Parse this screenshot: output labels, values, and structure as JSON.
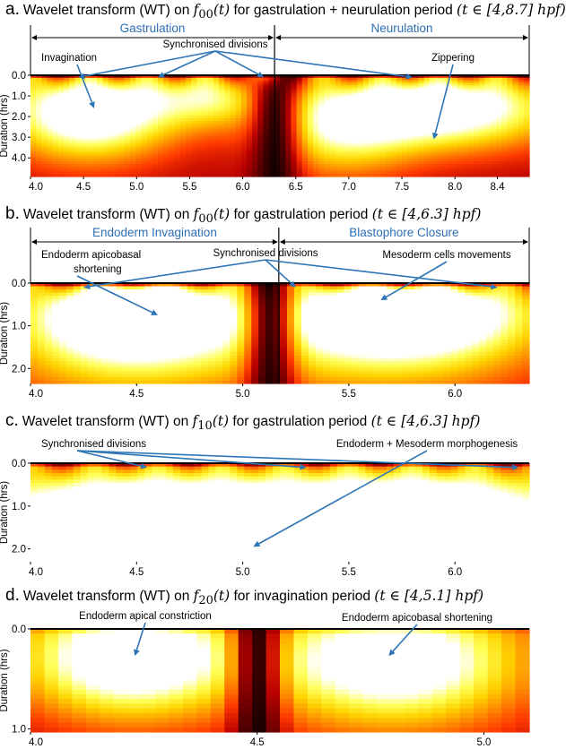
{
  "colors": {
    "arrow": "#2e75b6",
    "phase_label": "#2d6fb6",
    "colormap": [
      "#000000",
      "#5a0000",
      "#b80000",
      "#ff3a00",
      "#ff8c00",
      "#ffd400",
      "#ffff55",
      "#ffffff"
    ]
  },
  "chart_data": [
    {
      "type": "heatmap",
      "panel_label": "a.",
      "title_pre": "Wavelet transform (WT) on ",
      "title_func": "f",
      "title_sub": "00",
      "title_arg": "(t)",
      "title_mid": " for gastrulation + neurulation period ",
      "title_range": "(t ∈ [4,8.7] hpf)",
      "ylabel": "Duration (hrs)",
      "x_range": [
        4.0,
        8.7
      ],
      "y_range": [
        0,
        4.9
      ],
      "xticks": [
        4.0,
        4.5,
        5.0,
        5.5,
        6.0,
        6.5,
        7.0,
        7.5,
        8.0,
        8.4
      ],
      "xtick_labels": [
        "4.0",
        "4.5",
        "5.0",
        "5.5",
        "6.0",
        "6.5",
        "7.0",
        "7.5",
        "8.0",
        "8.4"
      ],
      "yticks": [
        0.0,
        1.0,
        2.0,
        3.0,
        4.0
      ],
      "ytick_labels": [
        "0.0",
        "1.0",
        "2.0",
        "3.0",
        "4.0"
      ],
      "phases": [
        {
          "label": "Gastrulation",
          "start": 4.0,
          "end": 6.3
        },
        {
          "label": "Neurulation",
          "start": 6.3,
          "end": 8.7
        }
      ],
      "divider_x": 6.3,
      "annotations": [
        {
          "text": "Invagination",
          "targets": [
            {
              "x": 4.6,
              "y": 1.6
            }
          ]
        },
        {
          "text": "Synchronised divisions",
          "targets": [
            {
              "x": 4.45,
              "y": 0.1
            },
            {
              "x": 5.2,
              "y": 0.1
            },
            {
              "x": 6.2,
              "y": 0.1
            },
            {
              "x": 7.6,
              "y": 0.1
            }
          ]
        },
        {
          "text": "Zippering",
          "targets": [
            {
              "x": 7.8,
              "y": 3.1
            }
          ]
        }
      ],
      "features": [
        {
          "x": 4.55,
          "y": 1.7,
          "amp": 1.0,
          "sx": 0.55,
          "sy": 1.6
        },
        {
          "x": 5.7,
          "y": 0.9,
          "amp": 0.55,
          "sx": 0.45,
          "sy": 1.1
        },
        {
          "x": 7.9,
          "y": 1.5,
          "amp": 0.95,
          "sx": 0.75,
          "sy": 1.4
        },
        {
          "x": 6.9,
          "y": 2.6,
          "amp": 0.55,
          "sx": 0.5,
          "sy": 1.6
        }
      ],
      "trough_x": 6.3,
      "ridge_period": 0.55
    },
    {
      "type": "heatmap",
      "panel_label": "b.",
      "title_pre": "Wavelet transform (WT) on ",
      "title_func": "f",
      "title_sub": "00",
      "title_arg": "(t)",
      "title_mid": " for gastrulation period ",
      "title_range": "(t ∈ [4,6.3] hpf)",
      "ylabel": "Duration (hrs)",
      "x_range": [
        4.0,
        6.35
      ],
      "y_range": [
        0,
        2.35
      ],
      "xticks": [
        4.0,
        4.5,
        5.0,
        5.5,
        6.0
      ],
      "xtick_labels": [
        "4.0",
        "4.5",
        "5.0",
        "5.5",
        "6.0"
      ],
      "yticks": [
        0.0,
        1.0,
        2.0
      ],
      "ytick_labels": [
        "0.0",
        "1.0",
        "2.0"
      ],
      "phases": [
        {
          "label": "Endoderm Invagination",
          "start": 4.0,
          "end": 5.17
        },
        {
          "label": "Blastophore Closure",
          "start": 5.17,
          "end": 6.35
        }
      ],
      "divider_x": 5.17,
      "annotations": [
        {
          "text": "Endoderm apicobasal",
          "text2": "shortening",
          "targets": [
            {
              "x": 4.6,
              "y": 0.75
            }
          ]
        },
        {
          "text": "Synchronised divisions",
          "targets": [
            {
              "x": 4.25,
              "y": 0.1
            },
            {
              "x": 5.25,
              "y": 0.1
            },
            {
              "x": 6.2,
              "y": 0.1
            }
          ]
        },
        {
          "text": "Mesoderm cells movements",
          "targets": [
            {
              "x": 5.65,
              "y": 0.4
            }
          ]
        }
      ],
      "features": [
        {
          "x": 4.5,
          "y": 0.55,
          "amp": 0.95,
          "sx": 0.32,
          "sy": 0.7
        },
        {
          "x": 4.45,
          "y": 1.4,
          "amp": 0.55,
          "sx": 0.45,
          "sy": 1.0
        },
        {
          "x": 5.75,
          "y": 0.55,
          "amp": 1.0,
          "sx": 0.4,
          "sy": 0.65
        },
        {
          "x": 5.7,
          "y": 1.4,
          "amp": 0.55,
          "sx": 0.5,
          "sy": 0.9
        }
      ],
      "trough_x": 5.13,
      "ridge_period": 0.32
    },
    {
      "type": "heatmap",
      "panel_label": "c.",
      "title_pre": "Wavelet transform (WT) on ",
      "title_func": "f",
      "title_sub": "10",
      "title_arg": "(t)",
      "title_mid": " for gastrulation period ",
      "title_range": "(t ∈ [4,6.3] hpf)",
      "ylabel": "Duration (hrs)",
      "x_range": [
        4.0,
        6.35
      ],
      "y_range": [
        0,
        2.3
      ],
      "xticks": [
        4.0,
        4.5,
        5.0,
        5.5,
        6.0
      ],
      "xtick_labels": [
        "4.0",
        "4.5",
        "5.0",
        "5.5",
        "6.0"
      ],
      "yticks": [
        0.0,
        1.0,
        2.0
      ],
      "ytick_labels": [
        "0.0",
        "1.0",
        "2.0"
      ],
      "phases": [],
      "divider_x": null,
      "annotations": [
        {
          "text": "Synchronised divisions",
          "targets": [
            {
              "x": 4.55,
              "y": 0.1
            },
            {
              "x": 5.3,
              "y": 0.1
            },
            {
              "x": 6.3,
              "y": 0.1
            }
          ]
        },
        {
          "text": "Endoderm + Mesoderm morphogenesis",
          "targets": [
            {
              "x": 5.05,
              "y": 1.95
            }
          ]
        }
      ],
      "features": [
        {
          "x": 5.1,
          "y": 1.7,
          "amp": 1.0,
          "sx": 0.9,
          "sy": 1.2
        },
        {
          "x": 4.3,
          "y": 1.6,
          "amp": 0.6,
          "sx": 0.5,
          "sy": 1.0
        },
        {
          "x": 6.0,
          "y": 1.5,
          "amp": 0.6,
          "sx": 0.5,
          "sy": 1.1
        }
      ],
      "trough_x": null,
      "ridge_period": 0.3
    },
    {
      "type": "heatmap",
      "panel_label": "d.",
      "title_pre": "Wavelet transform (WT) on ",
      "title_func": "f",
      "title_sub": "20",
      "title_arg": "(t)",
      "title_mid": " for invagination period ",
      "title_range": "(t ∈ [4,5.1] hpf)",
      "ylabel": "Duration (hrs)",
      "x_range": [
        4.0,
        5.1
      ],
      "y_range": [
        0,
        1.03
      ],
      "xticks": [
        4.0,
        4.5,
        5.0
      ],
      "xtick_labels": [
        "4.0",
        "4.5",
        "5.0"
      ],
      "yticks": [
        0.0,
        1.0
      ],
      "ytick_labels": [
        "0.0",
        "1.0"
      ],
      "phases": [],
      "divider_x": null,
      "annotations": [
        {
          "text": "Endoderm apical constriction",
          "targets": [
            {
              "x": 4.23,
              "y": 0.27
            }
          ]
        },
        {
          "text": "Endoderm apicobasal shortening",
          "targets": [
            {
              "x": 4.79,
              "y": 0.27
            }
          ]
        }
      ],
      "features": [
        {
          "x": 4.22,
          "y": 0.28,
          "amp": 1.0,
          "sx": 0.17,
          "sy": 0.42
        },
        {
          "x": 4.8,
          "y": 0.32,
          "amp": 0.95,
          "sx": 0.2,
          "sy": 0.45
        }
      ],
      "trough_x": 4.5,
      "ridge_period": null
    }
  ]
}
